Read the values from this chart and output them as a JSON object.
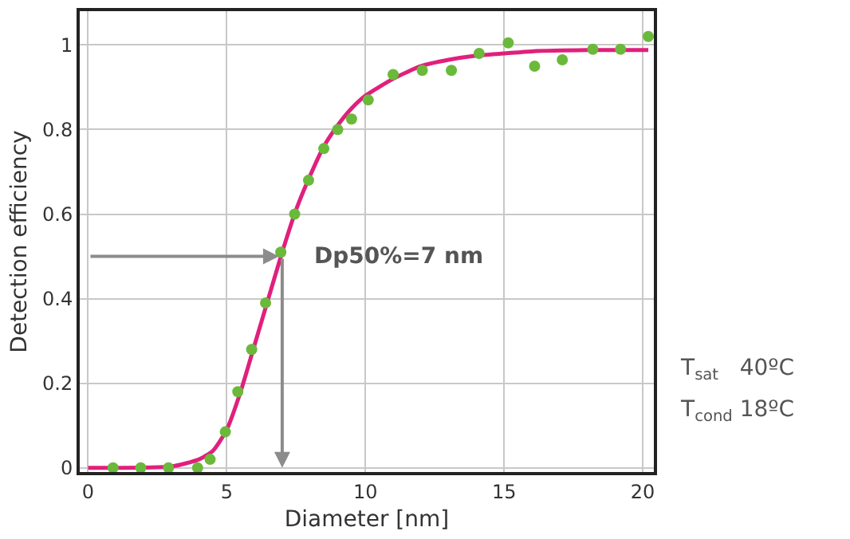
{
  "chart_data": {
    "type": "scatter",
    "xlabel": "Diameter [nm]",
    "ylabel": "Detection efficiency",
    "xlim": [
      -0.3,
      20.4
    ],
    "ylim": [
      -0.01,
      1.08
    ],
    "xticks": [
      0,
      5,
      10,
      15,
      20
    ],
    "yticks": [
      0,
      0.2,
      0.4,
      0.6,
      0.8,
      1
    ],
    "grid": true,
    "series": [
      {
        "marker": "circle",
        "color": "#6ab93b",
        "x": [
          0.9,
          1.9,
          2.9,
          3.95,
          4.4,
          4.95,
          5.4,
          5.9,
          6.4,
          6.95,
          7.45,
          7.95,
          8.5,
          9.0,
          9.5,
          10.1,
          11.0,
          12.05,
          13.1,
          14.1,
          15.15,
          16.1,
          17.1,
          18.2,
          19.2,
          20.2
        ],
        "values": [
          0,
          0,
          0,
          0,
          0.02,
          0.085,
          0.18,
          0.28,
          0.39,
          0.51,
          0.6,
          0.68,
          0.755,
          0.8,
          0.825,
          0.87,
          0.93,
          0.94,
          0.94,
          0.98,
          1.005,
          0.95,
          0.965,
          0.99,
          0.99,
          1.02
        ]
      },
      {
        "type": "line",
        "marker": "none",
        "color": "#e0207c",
        "x": [
          0,
          3,
          4,
          4.5,
          5,
          5.5,
          6,
          6.5,
          7,
          7.5,
          8,
          8.5,
          9,
          9.5,
          10,
          11,
          12,
          13,
          14,
          15,
          16,
          18,
          20.2
        ],
        "values": [
          0,
          0.003,
          0.02,
          0.04,
          0.09,
          0.18,
          0.29,
          0.4,
          0.51,
          0.61,
          0.69,
          0.76,
          0.81,
          0.85,
          0.88,
          0.92,
          0.95,
          0.965,
          0.975,
          0.98,
          0.985,
          0.988,
          0.988
        ]
      }
    ],
    "annotations": [
      {
        "text": "Dp50%=7 nm",
        "x": 7,
        "y": 0.5
      },
      "T$_{sat}$   40ºC",
      "T$_{cond}$ 18ºC"
    ]
  }
}
